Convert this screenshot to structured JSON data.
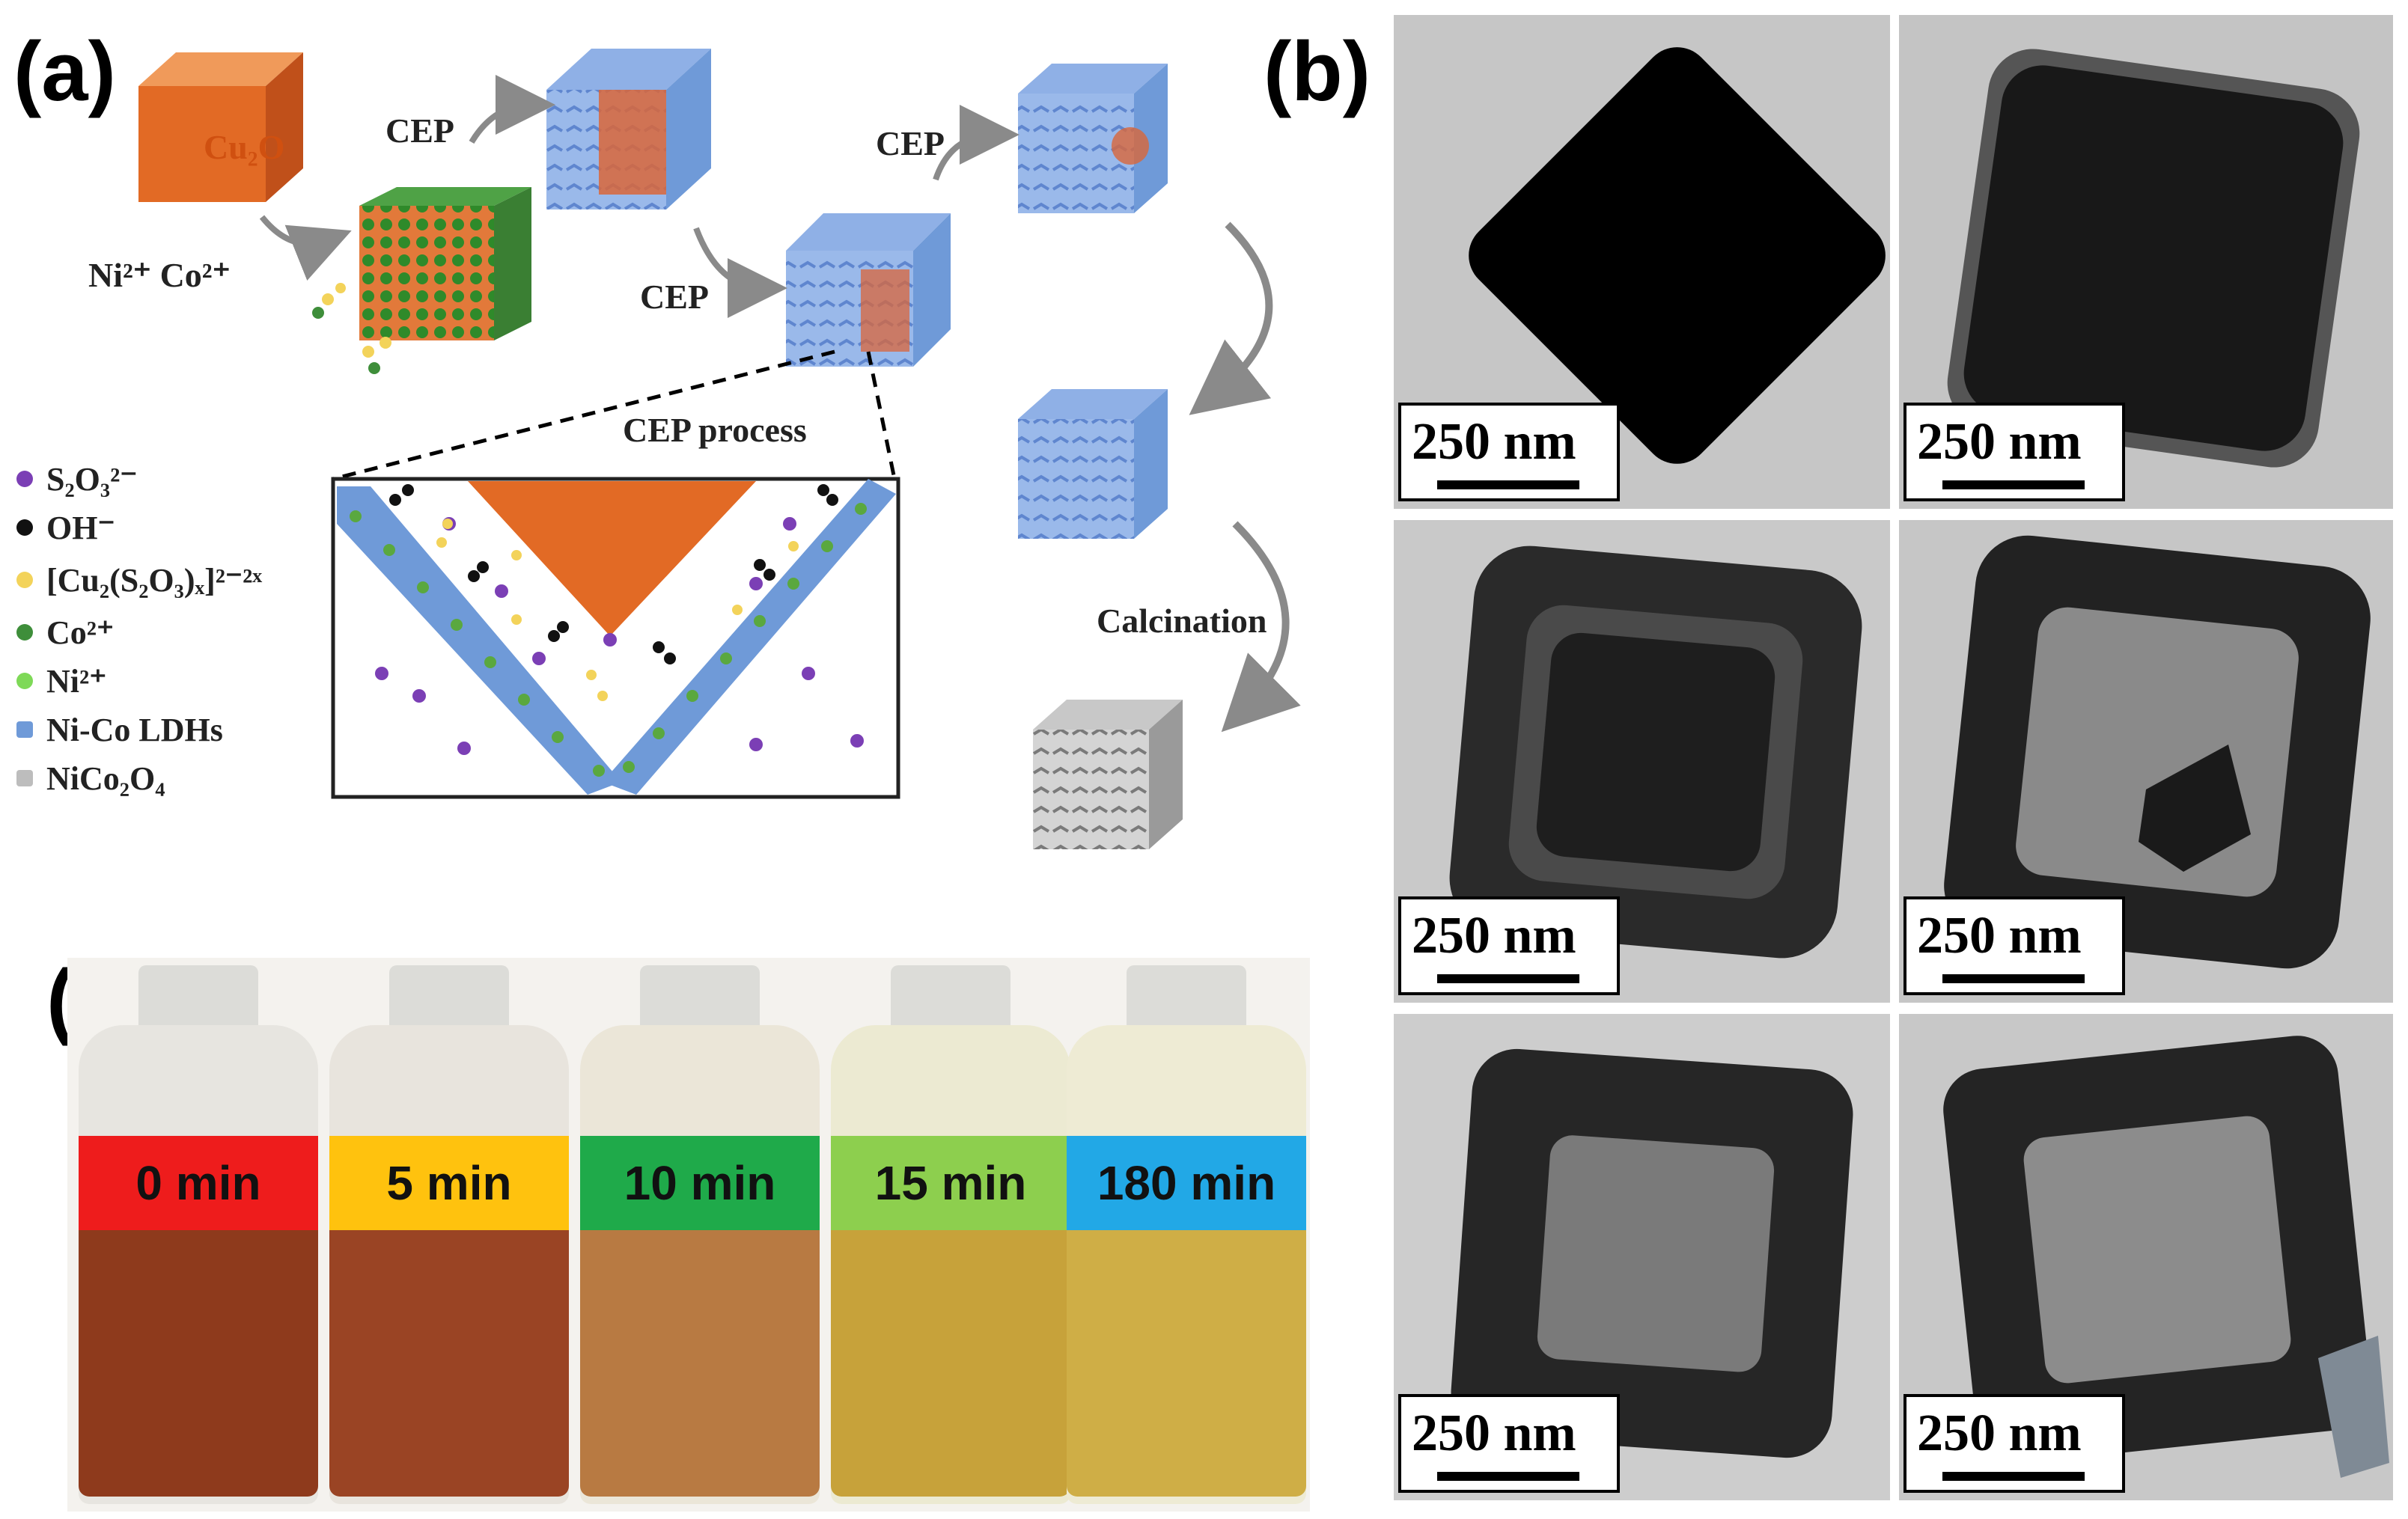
{
  "panels": {
    "a": "(a)",
    "b": "(b)",
    "c": "(c)"
  },
  "schematic": {
    "cu2o_label": "Cu₂O",
    "ions_label": "Ni²⁺ Co²⁺",
    "cep_1": "CEP",
    "cep_2": "CEP",
    "cep_3": "CEP",
    "cep_process": "CEP process",
    "calcination": "Calcination"
  },
  "legend": [
    {
      "label": "S₂O₃²⁻",
      "color": "#7b3fb5"
    },
    {
      "label": "OH⁻",
      "color": "#111111"
    },
    {
      "label": "[Cu₂(S₂O₃)ₓ]²⁻²ˣ",
      "color": "#f3d35a"
    },
    {
      "label": "Co²⁺",
      "color": "#3e8e3a"
    },
    {
      "label": "Ni²⁺",
      "color": "#7ed957"
    },
    {
      "label": "Ni-Co LDHs",
      "color": "#6f9ad8"
    },
    {
      "label": "NiCo₂O₄",
      "color": "#bdbdbd"
    }
  ],
  "tem_images": [
    {
      "scale": "250 nm"
    },
    {
      "scale": "250 nm"
    },
    {
      "scale": "250 nm"
    },
    {
      "scale": "250 nm"
    },
    {
      "scale": "250 nm"
    },
    {
      "scale": "250 nm"
    }
  ],
  "vials": [
    {
      "time": "0 min",
      "band_color": "#ee1c1c",
      "liquid_color": "#8e3a1c"
    },
    {
      "time": "5 min",
      "band_color": "#ffc20e",
      "liquid_color": "#9a4424"
    },
    {
      "time": "10 min",
      "band_color": "#1faa4a",
      "liquid_color": "#b87a42"
    },
    {
      "time": "15 min",
      "band_color": "#8dcf4e",
      "liquid_color": "#c7a23a"
    },
    {
      "time": "180 min",
      "band_color": "#22a8e6",
      "liquid_color": "#cfae46"
    }
  ]
}
